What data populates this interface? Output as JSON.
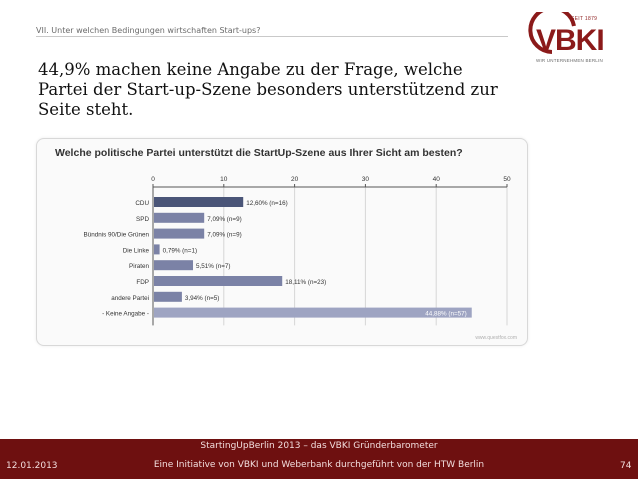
{
  "breadcrumb": "VII. Unter welchen Bedingungen wirtschaften Start-ups?",
  "logo": {
    "since": "SEIT 1879",
    "name": "VBKI",
    "tagline": "WIR UNTERNEHMEN BERLIN",
    "color": "#8b1a1a"
  },
  "heading": "44,9% machen keine Angabe zu der Frage, welche Partei der Start-up-Szene besonders unterstützend zur Seite steht.",
  "chart_data": {
    "type": "bar",
    "orientation": "horizontal",
    "title": "Welche politische Partei unterstützt die StartUp-Szene aus Ihrer Sicht am besten?",
    "categories": [
      "CDU",
      "SPD",
      "Bündnis 90/Die Grünen",
      "Die Linke",
      "Piraten",
      "FDP",
      "andere Partei",
      "- Keine Angabe -"
    ],
    "values": [
      12.6,
      7.09,
      7.09,
      0.79,
      5.51,
      18.11,
      3.94,
      44.88
    ],
    "data_labels": [
      "12,60% (n=16)",
      "7,09% (n=9)",
      "7,09% (n=9)",
      "0,79% (n=1)",
      "5,51% (n=7)",
      "18,11% (n=23)",
      "3,94% (n=5)",
      "44,88% (n=57)"
    ],
    "colors": [
      "#4a5578",
      "#7b82a6",
      "#7b82a6",
      "#7b82a6",
      "#7b82a6",
      "#7b82a6",
      "#7b82a6",
      "#9ea4c2"
    ],
    "xticks": [
      0,
      10,
      20,
      30,
      40,
      50
    ],
    "xlim": [
      0,
      50
    ],
    "grid": true,
    "watermark": "www.questfox.com"
  },
  "footer": {
    "line1": "StartingUpBerlin 2013 – das VBKI Gründerbarometer",
    "line2": "Eine Initiative von VBKI und Weberbank durchgeführt von der HTW Berlin",
    "date": "12.01.2013",
    "page": "74",
    "color": "#6e1010"
  }
}
